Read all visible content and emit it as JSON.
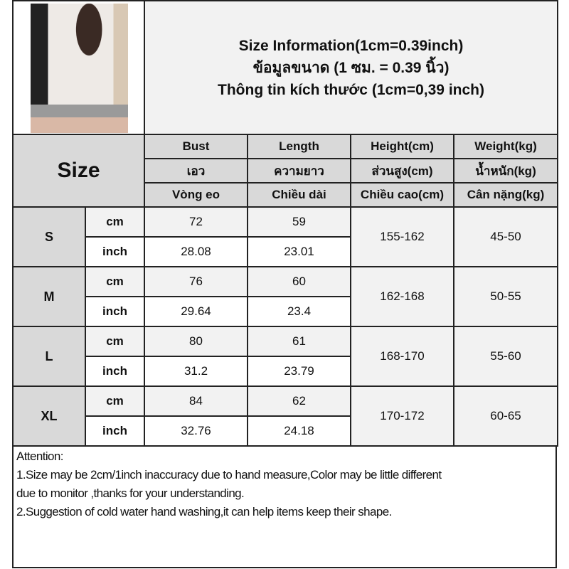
{
  "title": {
    "line1": "Size Information(1cm=0.39inch)",
    "line2": "ข้อมูลขนาด (1 ซม. = 0.39 นิ้ว)",
    "line3": "Thông tin kích thước (1cm=0,39 inch)"
  },
  "size_label": "Size",
  "headers": [
    [
      "Bust",
      "Length",
      "Height(cm)",
      "Weight(kg)"
    ],
    [
      "เอว",
      "ความยาว",
      "ส่วนสูง(cm)",
      "น้ำหนัก(kg)"
    ],
    [
      "Vòng eo",
      "Chiều dài",
      "Chiều cao(cm)",
      "Cân nặng(kg)"
    ]
  ],
  "units": {
    "cm": "cm",
    "inch": "inch"
  },
  "rows": [
    {
      "size": "S",
      "bust_cm": "72",
      "length_cm": "59",
      "bust_inch": "28.08",
      "length_inch": "23.01",
      "height": "155-162",
      "weight": "45-50"
    },
    {
      "size": "M",
      "bust_cm": "76",
      "length_cm": "60",
      "bust_inch": "29.64",
      "length_inch": "23.4",
      "height": "162-168",
      "weight": "50-55"
    },
    {
      "size": "L",
      "bust_cm": "80",
      "length_cm": "61",
      "bust_inch": "31.2",
      "length_inch": "23.79",
      "height": "168-170",
      "weight": "55-60"
    },
    {
      "size": "XL",
      "bust_cm": "84",
      "length_cm": "62",
      "bust_inch": "32.76",
      "length_inch": "24.18",
      "height": "170-172",
      "weight": "60-65"
    }
  ],
  "notes": {
    "heading": "Attention:",
    "line1": "1.Size may be 2cm/1inch inaccuracy due to hand measure,Color may be little different",
    "line2": "due to monitor ,thanks for your understanding.",
    "line3": "2.Suggestion of cold water hand washing,it can help items keep their shape."
  },
  "colors": {
    "header_bg": "#d9d9d9",
    "cm_row_bg": "#f2f2f2",
    "inch_row_bg": "#ffffff",
    "border": "#222222"
  }
}
